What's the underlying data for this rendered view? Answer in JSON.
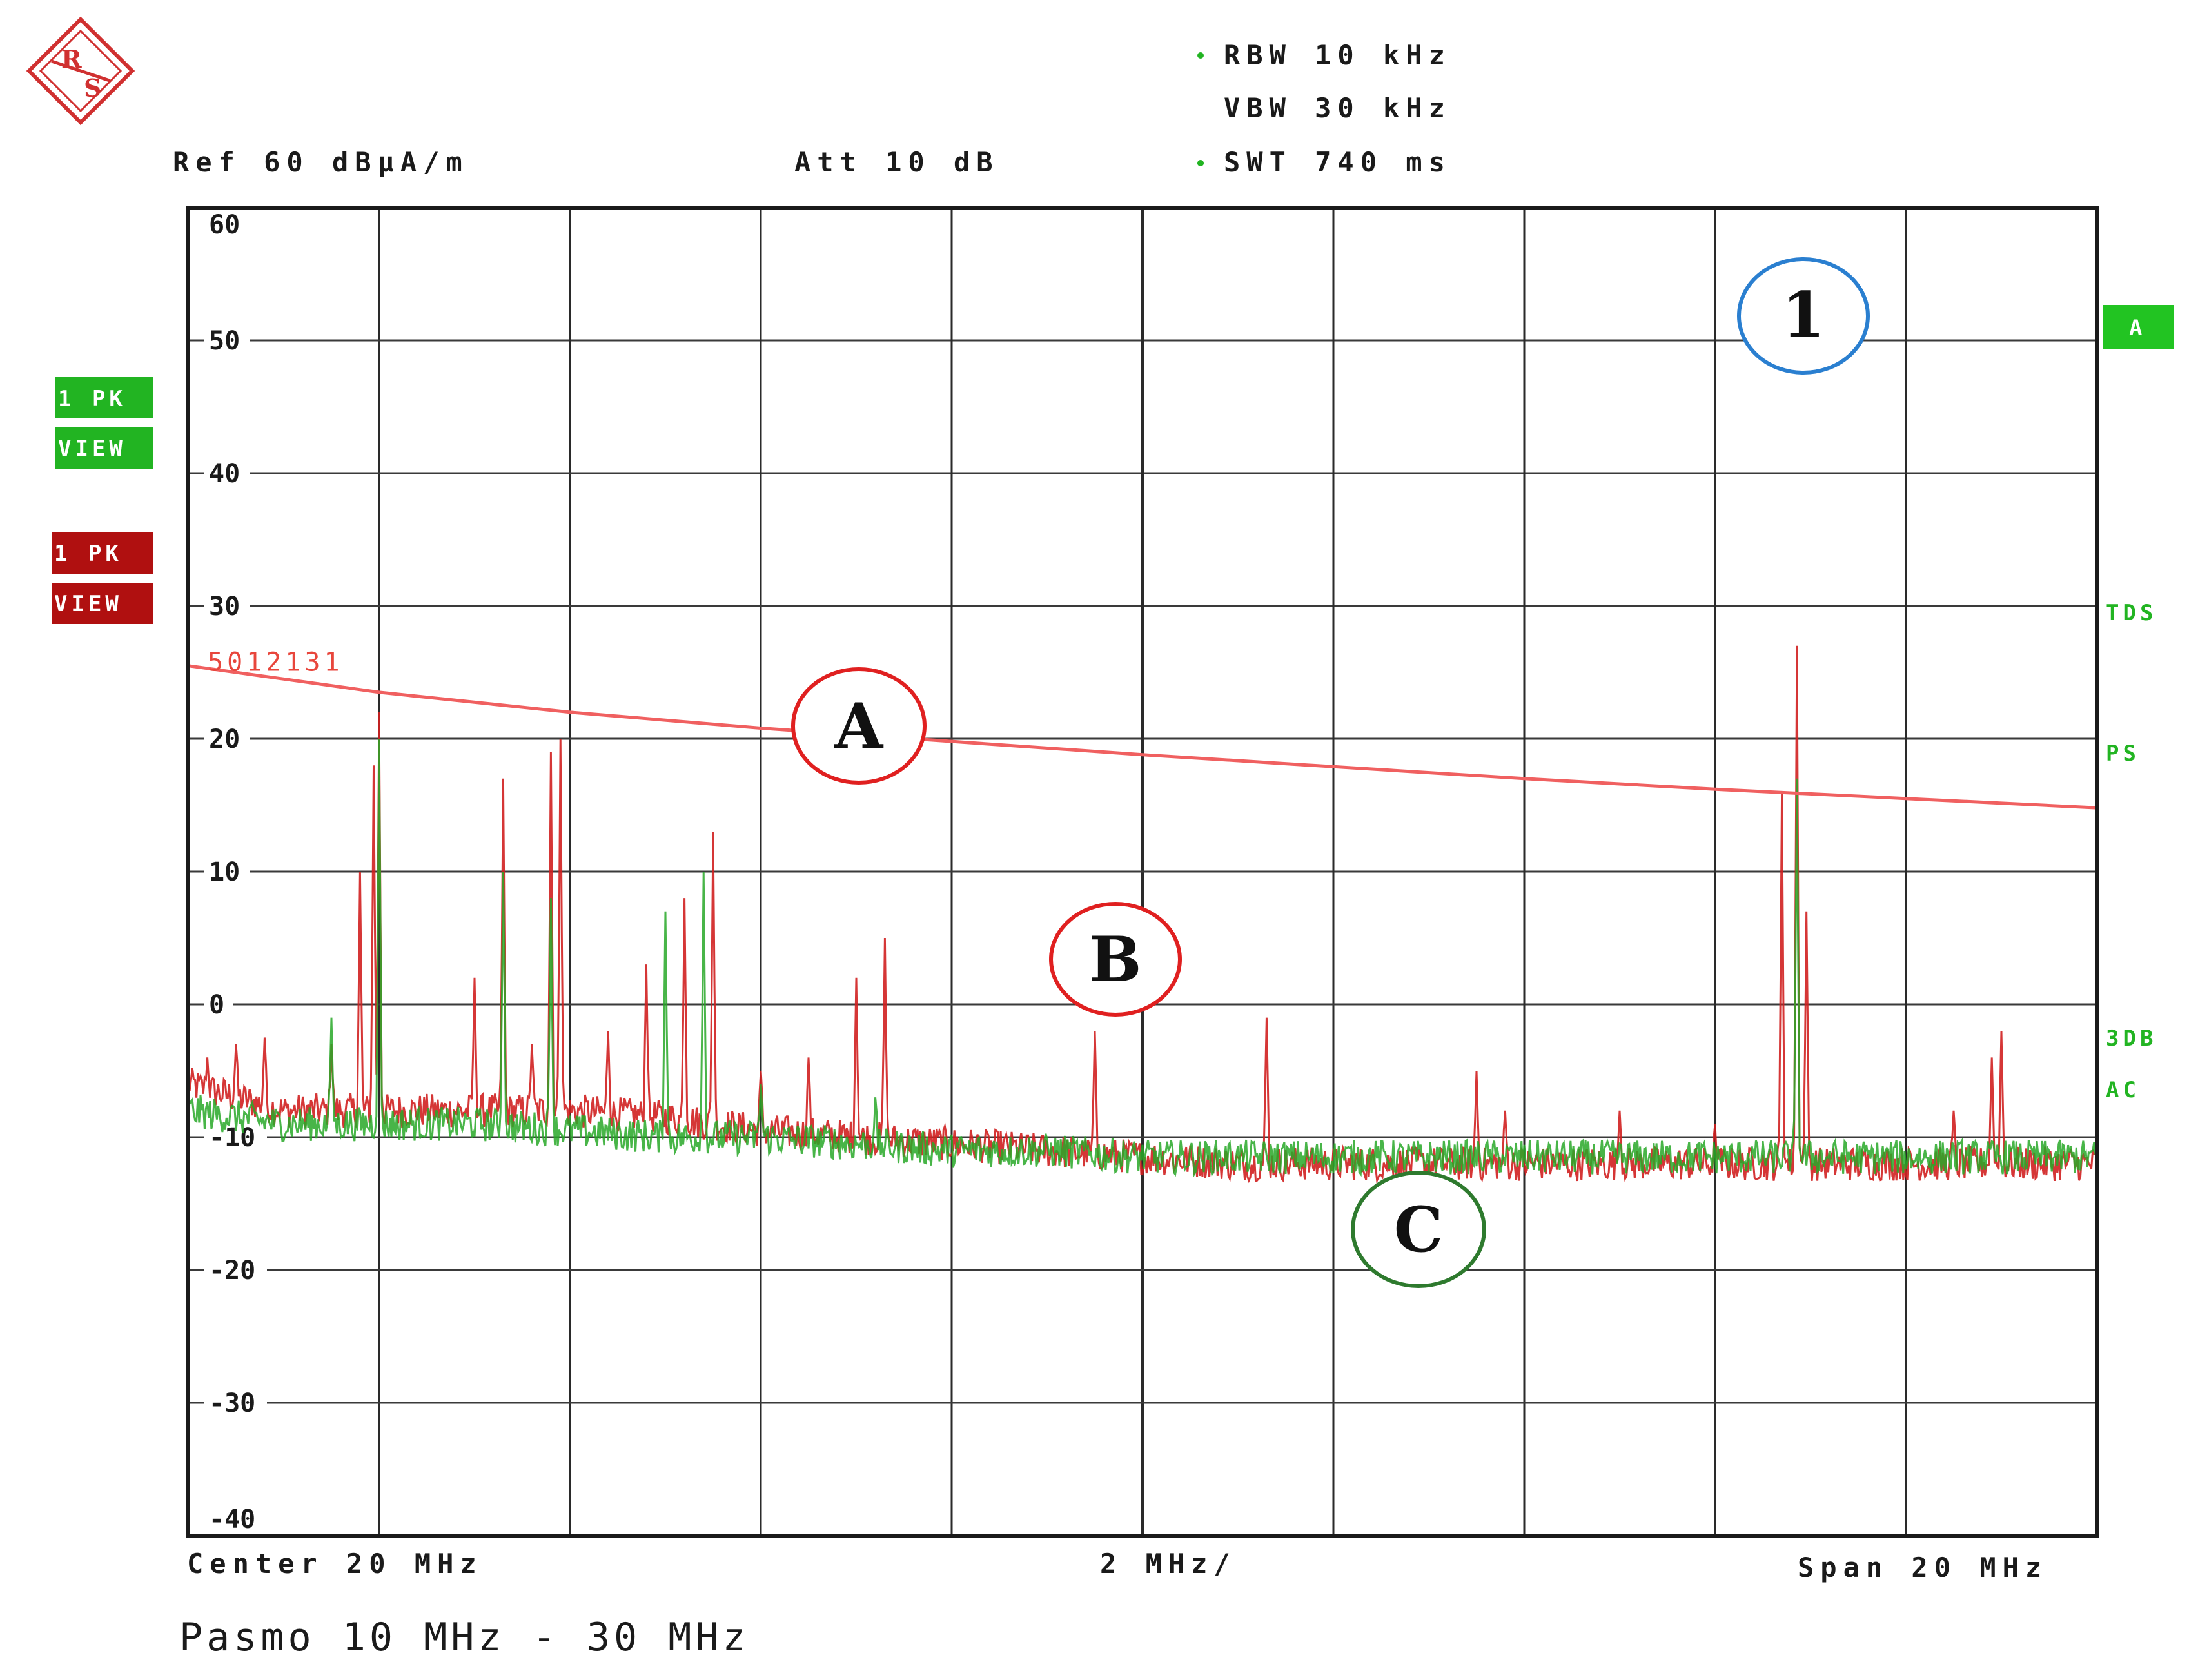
{
  "header": {
    "rbw": "RBW 10 kHz",
    "vbw": "VBW 30 kHz",
    "swt": "SWT 740 ms",
    "ref": "Ref  60 dBµA/m",
    "att": "Att  10 dB"
  },
  "side_left": [
    {
      "line1": "1 PK",
      "line2": "VIEW",
      "color": "#22b422"
    },
    {
      "line1": "1 PK",
      "line2": "VIEW",
      "color": "#b01010"
    }
  ],
  "side_right": {
    "a_badge": "A",
    "tds": "TDS",
    "ps": "PS",
    "db3": "3DB",
    "ac": "AC"
  },
  "footer": {
    "center": "Center 20 MHz",
    "div": "2 MHz/",
    "span": "Span 20 MHz",
    "range": "Pasmo 10 MHz - 30 MHz"
  },
  "callouts": {
    "one": "1",
    "a": "A",
    "b": "B",
    "c": "C"
  },
  "chart_data": {
    "type": "line",
    "xlabel": "",
    "ylabel": "",
    "xlim": [
      10,
      30
    ],
    "ylim": [
      -40,
      60
    ],
    "yticks": [
      "60",
      "50",
      "40",
      "30",
      "20",
      "10",
      "0",
      "-10",
      "-20",
      "-30",
      "-40"
    ],
    "grid": true,
    "limit_line": {
      "name": "5012131",
      "color": "#f06060",
      "x": [
        10,
        12,
        14,
        16,
        18,
        20,
        22,
        24,
        26,
        28,
        30
      ],
      "y": [
        25.5,
        23.5,
        22.0,
        20.8,
        19.8,
        18.8,
        17.9,
        17.0,
        16.2,
        15.5,
        14.8
      ]
    },
    "series": [
      {
        "color": "#d02020",
        "baseline": [
          [
            10,
            -6
          ],
          [
            11,
            -8
          ],
          [
            12,
            -8
          ],
          [
            13,
            -8
          ],
          [
            14,
            -8
          ],
          [
            15,
            -8.5
          ],
          [
            16,
            -9.5
          ],
          [
            17,
            -10
          ],
          [
            18,
            -10.5
          ],
          [
            19,
            -11
          ],
          [
            20,
            -11.5
          ],
          [
            21,
            -12
          ],
          [
            22,
            -12
          ],
          [
            23,
            -12
          ],
          [
            24,
            -12
          ],
          [
            25,
            -12
          ],
          [
            26,
            -12
          ],
          [
            27,
            -12
          ],
          [
            28,
            -12
          ],
          [
            29,
            -12
          ],
          [
            30,
            -12
          ]
        ],
        "peaks": [
          [
            10.2,
            -4
          ],
          [
            10.5,
            -3
          ],
          [
            10.8,
            -2.5
          ],
          [
            11.5,
            -3
          ],
          [
            11.8,
            10
          ],
          [
            11.95,
            18
          ],
          [
            12.0,
            22
          ],
          [
            13.0,
            2
          ],
          [
            13.3,
            17
          ],
          [
            13.6,
            -3
          ],
          [
            13.8,
            19
          ],
          [
            13.9,
            20
          ],
          [
            14.4,
            -2
          ],
          [
            14.8,
            3
          ],
          [
            15.2,
            8
          ],
          [
            15.5,
            13
          ],
          [
            16.0,
            -5
          ],
          [
            16.5,
            -4
          ],
          [
            17.0,
            2
          ],
          [
            17.3,
            5
          ],
          [
            19.5,
            -2
          ],
          [
            21.3,
            -1
          ],
          [
            23.5,
            -5
          ],
          [
            23.8,
            -8
          ],
          [
            25.0,
            -8
          ],
          [
            26.0,
            -9
          ],
          [
            26.7,
            16
          ],
          [
            26.85,
            27
          ],
          [
            26.95,
            7
          ],
          [
            28.5,
            -8
          ],
          [
            28.9,
            -4
          ],
          [
            29.0,
            -2
          ]
        ]
      },
      {
        "color": "#28a828",
        "baseline": [
          [
            10,
            -8
          ],
          [
            11,
            -9
          ],
          [
            12,
            -9
          ],
          [
            13,
            -9
          ],
          [
            14,
            -9.5
          ],
          [
            15,
            -10
          ],
          [
            16,
            -10
          ],
          [
            17,
            -10.5
          ],
          [
            18,
            -11
          ],
          [
            19,
            -11
          ],
          [
            20,
            -11.5
          ],
          [
            21,
            -11.5
          ],
          [
            22,
            -11.5
          ],
          [
            23,
            -11.5
          ],
          [
            24,
            -11.5
          ],
          [
            25,
            -11.5
          ],
          [
            26,
            -11.5
          ],
          [
            27,
            -11.5
          ],
          [
            28,
            -11.5
          ],
          [
            29,
            -11.5
          ],
          [
            30,
            -11.5
          ]
        ],
        "peaks": [
          [
            11.5,
            -1
          ],
          [
            12.0,
            20
          ],
          [
            13.3,
            10
          ],
          [
            13.8,
            8
          ],
          [
            15.0,
            7
          ],
          [
            15.4,
            10
          ],
          [
            16.0,
            -6
          ],
          [
            17.2,
            -7
          ],
          [
            26.85,
            17
          ]
        ]
      }
    ]
  }
}
